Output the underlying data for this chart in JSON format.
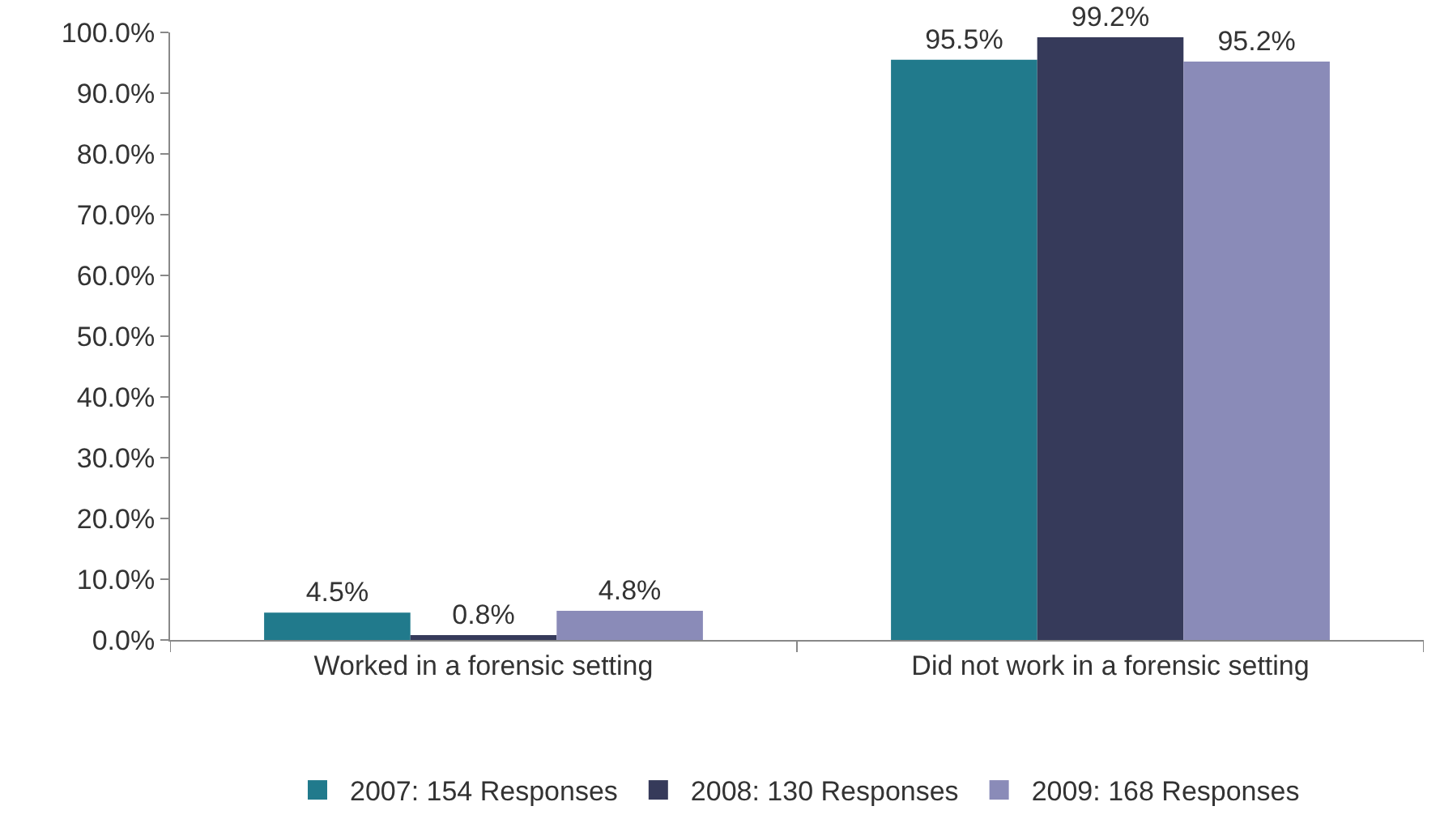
{
  "chart_data": {
    "type": "bar",
    "categories": [
      "Worked in a forensic setting",
      "Did not work in a forensic setting"
    ],
    "series": [
      {
        "name": "2007: 154 Responses",
        "color": "#217a8c",
        "values": [
          4.5,
          95.5
        ],
        "value_labels": [
          "4.5%",
          "95.5%"
        ]
      },
      {
        "name": "2008: 130 Responses",
        "color": "#363a5a",
        "values": [
          0.8,
          99.2
        ],
        "value_labels": [
          "0.8%",
          "99.2%"
        ]
      },
      {
        "name": "2009: 168 Responses",
        "color": "#8a8bb8",
        "values": [
          4.8,
          95.2
        ],
        "value_labels": [
          "4.8%",
          "95.2%"
        ]
      }
    ],
    "ylim": [
      0,
      100
    ],
    "yticks": [
      {
        "value": 0,
        "label": "0.0%"
      },
      {
        "value": 10,
        "label": "10.0%"
      },
      {
        "value": 20,
        "label": "20.0%"
      },
      {
        "value": 30,
        "label": "30.0%"
      },
      {
        "value": 40,
        "label": "40.0%"
      },
      {
        "value": 50,
        "label": "50.0%"
      },
      {
        "value": 60,
        "label": "60.0%"
      },
      {
        "value": 70,
        "label": "70.0%"
      },
      {
        "value": 80,
        "label": "80.0%"
      },
      {
        "value": 90,
        "label": "90.0%"
      },
      {
        "value": 100,
        "label": "100.0%"
      }
    ],
    "legend": "bottom"
  }
}
